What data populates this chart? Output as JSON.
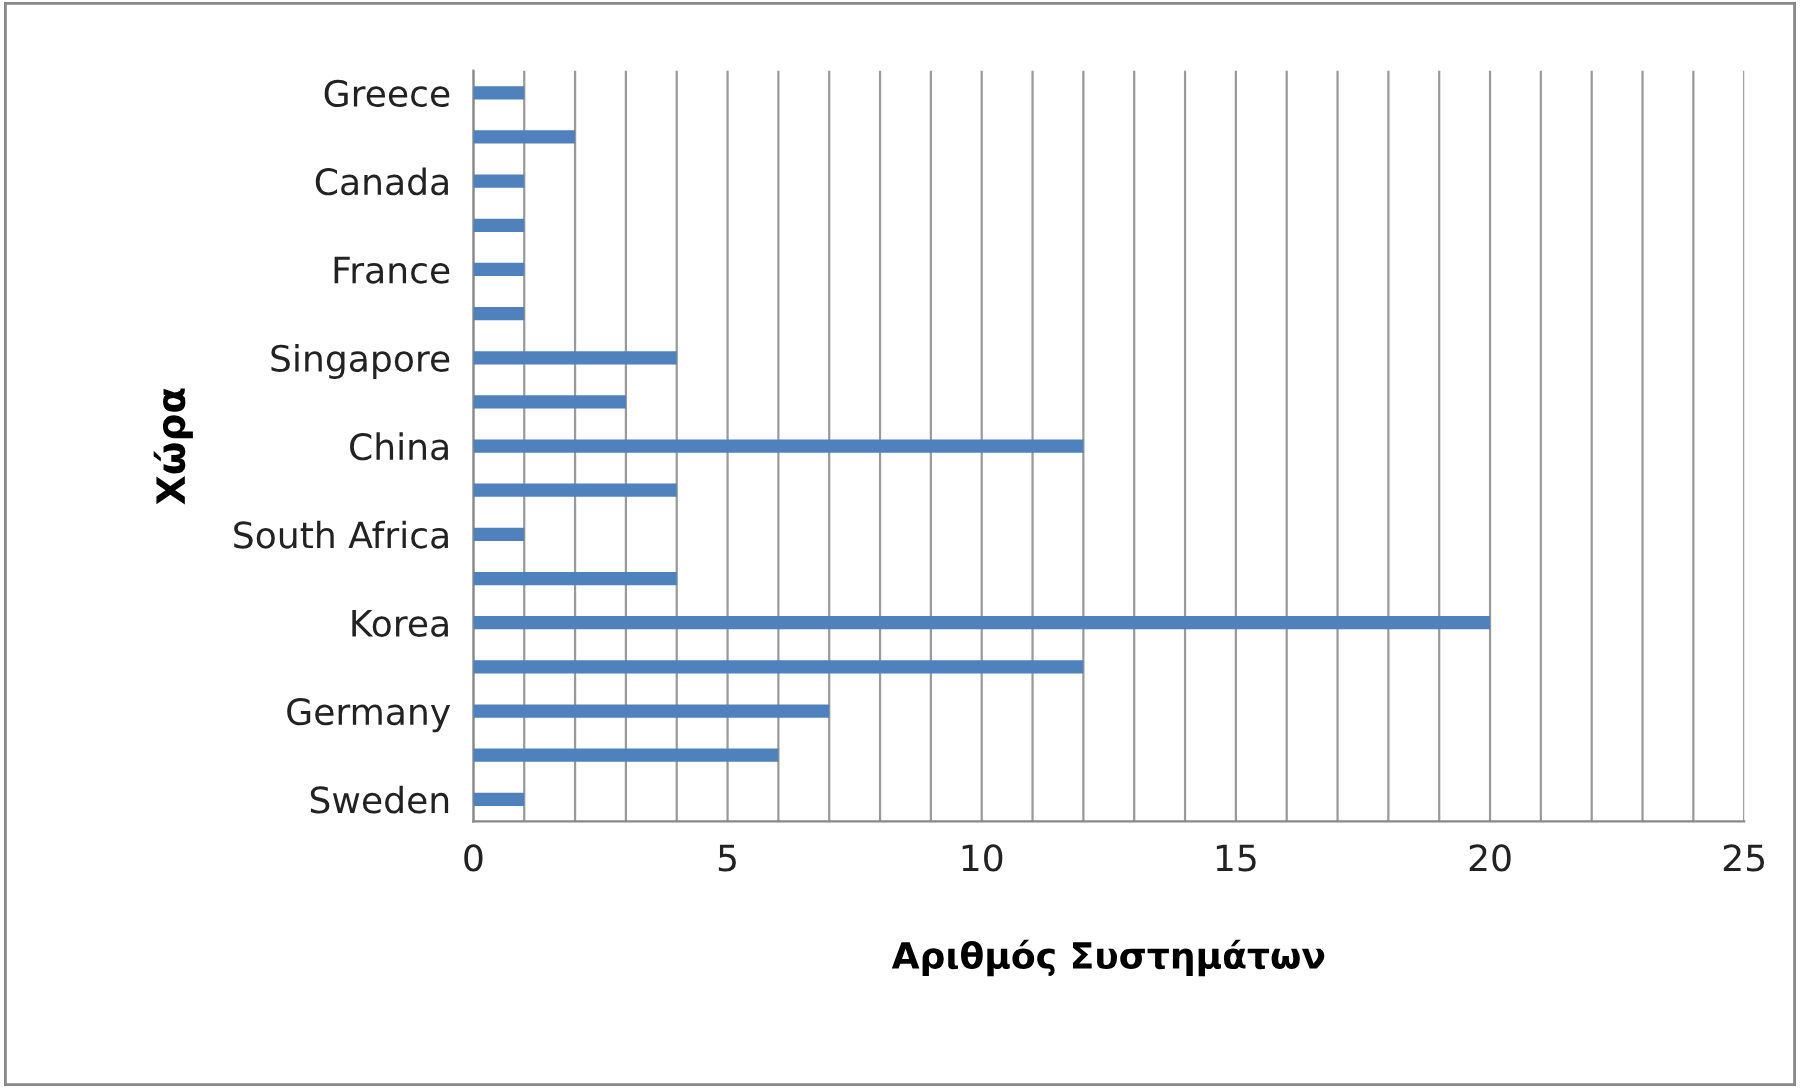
{
  "chart_data": {
    "type": "bar",
    "orientation": "horizontal",
    "xlabel": "Αριθμός Συστημάτων",
    "ylabel": "Χώρα",
    "categories": [
      "Greece",
      null,
      "Canada",
      null,
      "France",
      null,
      "Singapore",
      null,
      "China",
      null,
      "South Africa",
      null,
      "Korea",
      null,
      "Germany",
      null,
      "Sweden"
    ],
    "values": [
      1,
      2,
      1,
      1,
      1,
      1,
      4,
      3,
      12,
      4,
      1,
      4,
      20,
      12,
      7,
      6,
      1
    ],
    "color": "#4f81bd",
    "xlim": [
      0,
      25
    ],
    "xticks": [
      0,
      {
        "value": 1,
        "label": null
      },
      {
        "value": 2,
        "label": null
      },
      {
        "value": 3,
        "label": null
      },
      {
        "value": 4,
        "label": null
      },
      5,
      {
        "value": 6,
        "label": null
      },
      {
        "value": 7,
        "label": null
      },
      {
        "value": 8,
        "label": null
      },
      {
        "value": 9,
        "label": null
      },
      10,
      {
        "value": 11,
        "label": null
      },
      {
        "value": 12,
        "label": null
      },
      {
        "value": 13,
        "label": null
      },
      {
        "value": 14,
        "label": null
      },
      15,
      {
        "value": 16,
        "label": null
      },
      {
        "value": 17,
        "label": null
      },
      {
        "value": 18,
        "label": null
      },
      {
        "value": 19,
        "label": null
      },
      20,
      {
        "value": 21,
        "label": null
      },
      {
        "value": 22,
        "label": null
      },
      {
        "value": 23,
        "label": null
      },
      {
        "value": 24,
        "label": null
      },
      25
    ],
    "grid": "x"
  }
}
